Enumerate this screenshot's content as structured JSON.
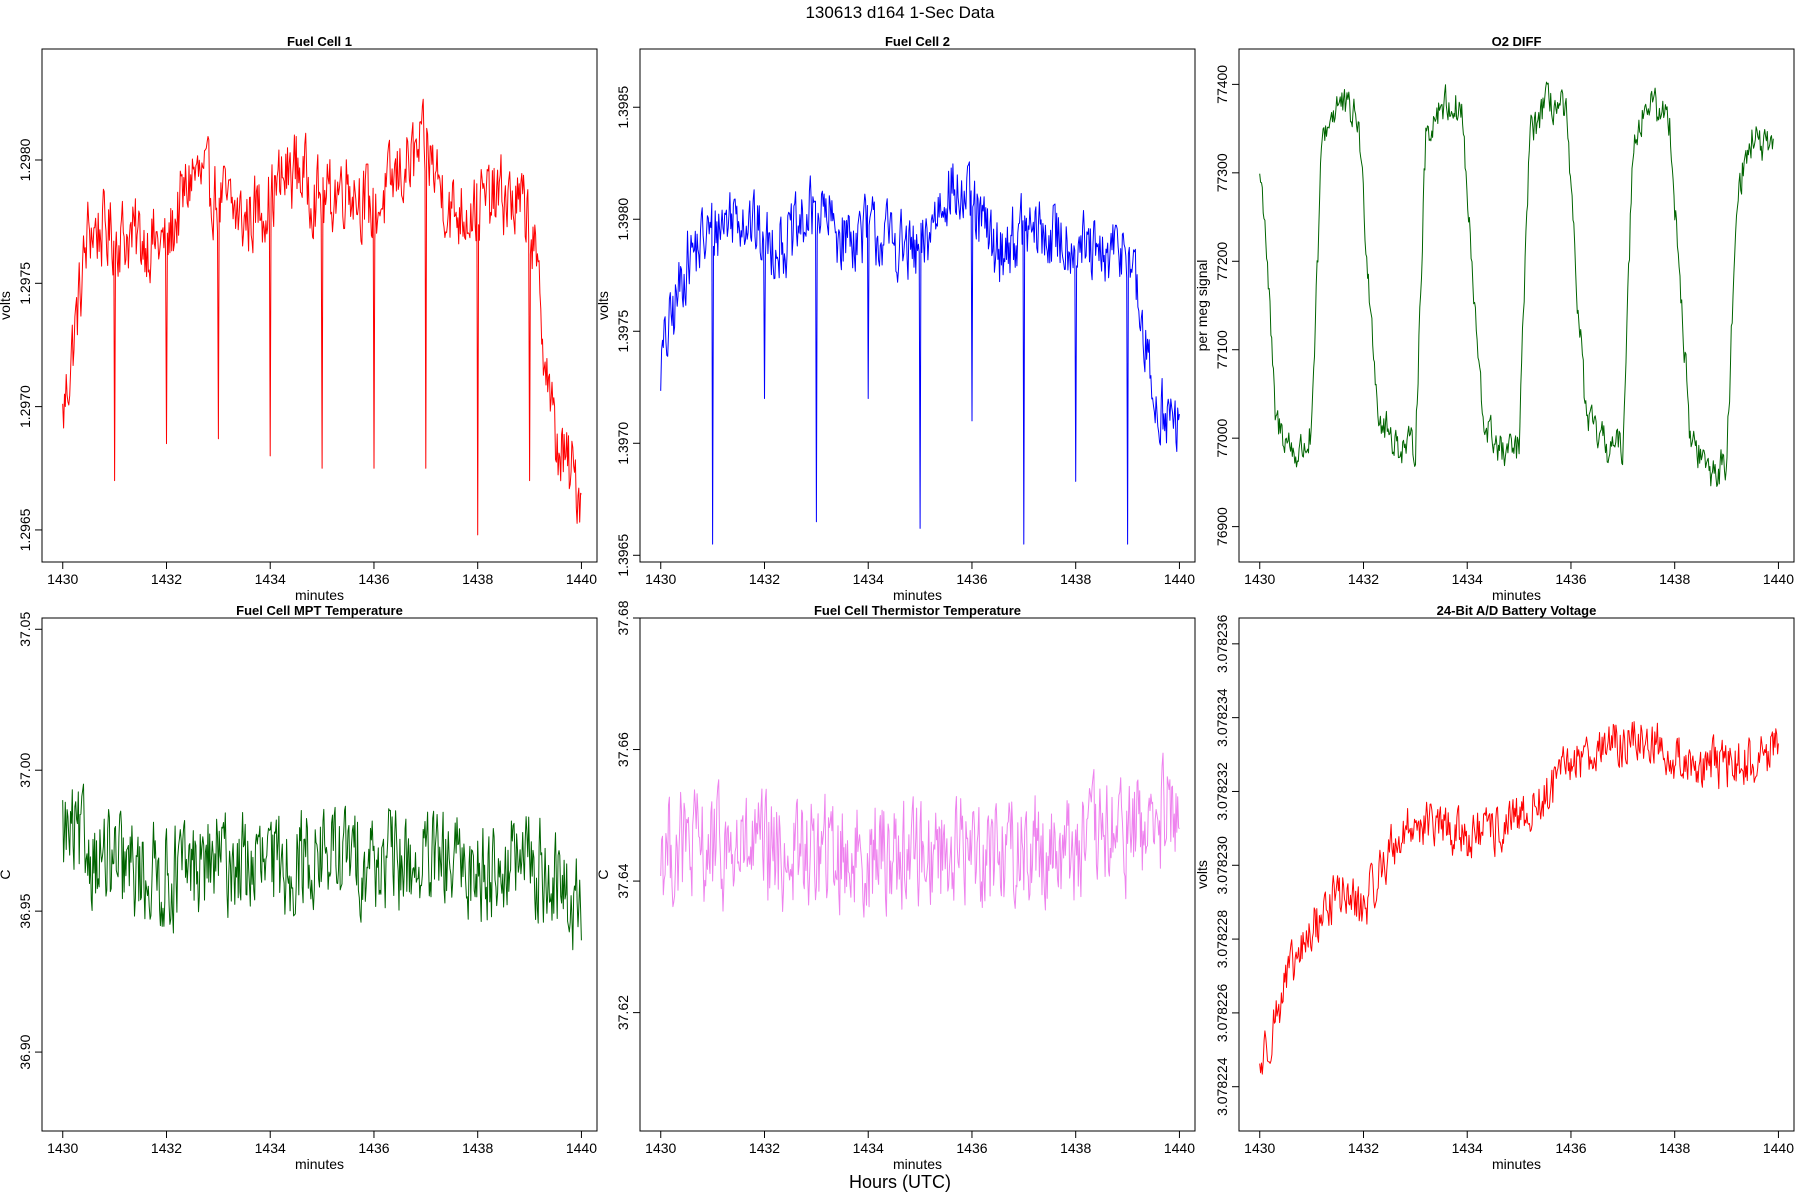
{
  "figure": {
    "title": "130613   d164   1-Sec Data",
    "outer_xlabel": "Hours (UTC)"
  },
  "chart_data": [
    {
      "type": "line",
      "title": "Fuel Cell 1",
      "xlabel": "minutes",
      "ylabel": "volts",
      "color": "#ff0000",
      "xlim": [
        1429.6,
        1440.3
      ],
      "ylim": [
        1.29637,
        1.29845
      ],
      "xticks": [
        1430,
        1432,
        1434,
        1436,
        1438,
        1440
      ],
      "yticks": [
        1.2965,
        1.297,
        1.2975,
        1.298
      ],
      "ytick_labels": [
        "1.2965",
        "1.2970",
        "1.2975",
        "1.2980"
      ],
      "x": [
        1430.0,
        1430.5,
        1431.0,
        1431.5,
        1432.0,
        1432.5,
        1433.0,
        1433.5,
        1434.0,
        1434.5,
        1435.0,
        1435.5,
        1436.0,
        1436.5,
        1437.0,
        1437.5,
        1438.0,
        1438.5,
        1439.0,
        1439.5,
        1440.0
      ],
      "y": [
        1.29695,
        1.29772,
        1.2977,
        1.29768,
        1.29765,
        1.29795,
        1.29785,
        1.29775,
        1.29785,
        1.29798,
        1.29782,
        1.29792,
        1.29778,
        1.29795,
        1.29805,
        1.29778,
        1.29782,
        1.29785,
        1.29778,
        1.29685,
        1.29665
      ]
    },
    {
      "type": "line",
      "title": "Fuel Cell 2",
      "xlabel": "minutes",
      "ylabel": "volts",
      "color": "#0000ff",
      "xlim": [
        1429.6,
        1440.3
      ],
      "ylim": [
        1.39647,
        1.39876
      ],
      "xticks": [
        1430,
        1432,
        1434,
        1436,
        1438,
        1440
      ],
      "yticks": [
        1.3965,
        1.397,
        1.3975,
        1.398,
        1.3985
      ],
      "ytick_labels": [
        "1.3965",
        "1.3970",
        "1.3975",
        "1.3980",
        "1.3985"
      ],
      "x": [
        1430.0,
        1430.5,
        1431.0,
        1431.5,
        1432.0,
        1432.5,
        1433.0,
        1433.5,
        1434.0,
        1434.5,
        1435.0,
        1435.5,
        1436.0,
        1436.5,
        1437.0,
        1437.5,
        1438.0,
        1438.5,
        1439.0,
        1439.5,
        1440.0
      ],
      "y": [
        1.39735,
        1.39782,
        1.39795,
        1.39805,
        1.3979,
        1.3979,
        1.39805,
        1.39792,
        1.39795,
        1.3979,
        1.39782,
        1.39815,
        1.39805,
        1.39785,
        1.39795,
        1.39792,
        1.3979,
        1.3978,
        1.3979,
        1.3972,
        1.39705
      ]
    },
    {
      "type": "line",
      "title": "O2 DIFF",
      "xlabel": "minutes",
      "ylabel": "per meg signal",
      "color": "#006400",
      "xlim": [
        1429.6,
        1440.3
      ],
      "ylim": [
        76860,
        77440
      ],
      "xticks": [
        1430,
        1432,
        1434,
        1436,
        1438,
        1440
      ],
      "yticks": [
        76900,
        77000,
        77100,
        77200,
        77300,
        77400
      ],
      "ytick_labels": [
        "76900",
        "77000",
        "77100",
        "77200",
        "77300",
        "77400"
      ],
      "x": [
        1430.0,
        1430.1,
        1430.3,
        1430.7,
        1431.0,
        1431.2,
        1431.5,
        1431.9,
        1432.1,
        1432.3,
        1432.7,
        1433.0,
        1433.2,
        1433.5,
        1433.9,
        1434.1,
        1434.3,
        1434.7,
        1435.0,
        1435.2,
        1435.5,
        1435.9,
        1436.1,
        1436.3,
        1436.7,
        1437.0,
        1437.2,
        1437.5,
        1437.9,
        1438.1,
        1438.3,
        1438.7,
        1439.0,
        1439.2,
        1439.5,
        1439.9
      ],
      "y": [
        77300,
        77250,
        77020,
        76980,
        77000,
        77340,
        77380,
        77360,
        77180,
        77020,
        76990,
        76990,
        77340,
        77380,
        77370,
        77180,
        77020,
        76980,
        76990,
        77340,
        77380,
        77370,
        77180,
        77020,
        76990,
        76990,
        77340,
        77380,
        77360,
        77180,
        77000,
        76960,
        76970,
        77280,
        77340,
        77320
      ]
    },
    {
      "type": "line",
      "title": "Fuel Cell MPT Temperature",
      "xlabel": "minutes",
      "ylabel": "C",
      "color": "#006400",
      "xlim": [
        1429.6,
        1440.3
      ],
      "ylim": [
        36.872,
        37.054
      ],
      "xticks": [
        1430,
        1432,
        1434,
        1436,
        1438,
        1440
      ],
      "yticks": [
        36.9,
        36.95,
        37.0,
        37.05
      ],
      "ytick_labels": [
        "36.90",
        "36.95",
        "37.00",
        "37.05"
      ],
      "x": [
        1430.0,
        1431.0,
        1432.0,
        1433.0,
        1434.0,
        1435.0,
        1436.0,
        1437.0,
        1438.0,
        1439.0,
        1440.0
      ],
      "y": [
        36.978,
        36.965,
        36.962,
        36.968,
        36.965,
        36.97,
        36.968,
        36.966,
        36.965,
        36.968,
        36.95
      ]
    },
    {
      "type": "line",
      "title": "Fuel Cell Thermistor Temperature",
      "xlabel": "minutes",
      "ylabel": "C",
      "color": "#ee82ee",
      "xlim": [
        1429.6,
        1440.3
      ],
      "ylim": [
        37.602,
        37.68
      ],
      "xticks": [
        1430,
        1432,
        1434,
        1436,
        1438,
        1440
      ],
      "yticks": [
        37.62,
        37.64,
        37.66,
        37.68
      ],
      "ytick_labels": [
        "37.62",
        "37.64",
        "37.66",
        "37.68"
      ],
      "x": [
        1430.0,
        1432.0,
        1434.0,
        1436.0,
        1438.0,
        1440.0
      ],
      "y": [
        37.645,
        37.644,
        37.644,
        37.645,
        37.645,
        37.65
      ]
    },
    {
      "type": "line",
      "title": "24-Bit A/D Battery Voltage",
      "xlabel": "minutes",
      "ylabel": "volts",
      "color": "#ff0000",
      "xlim": [
        1429.6,
        1440.3
      ],
      "ylim": [
        3.0782228,
        3.0782367
      ],
      "xticks": [
        1430,
        1432,
        1434,
        1436,
        1438,
        1440
      ],
      "yticks": [
        3.078224,
        3.078226,
        3.078228,
        3.07823,
        3.078232,
        3.078234,
        3.078236
      ],
      "ytick_labels": [
        "3.078224",
        "3.078226",
        "3.078228",
        "3.078230",
        "3.078232",
        "3.078234",
        "3.078236"
      ],
      "x": [
        1430.0,
        1430.5,
        1431.0,
        1431.5,
        1432.0,
        1432.5,
        1433.0,
        1433.5,
        1434.0,
        1434.5,
        1435.0,
        1435.5,
        1436.0,
        1436.5,
        1437.0,
        1437.5,
        1438.0,
        1438.5,
        1439.0,
        1439.5,
        1440.0
      ],
      "y": [
        3.0782245,
        3.0782268,
        3.0782282,
        3.0782293,
        3.0782288,
        3.0782304,
        3.0782312,
        3.078231,
        3.0782308,
        3.0782309,
        3.0782312,
        3.0782318,
        3.0782328,
        3.0782332,
        3.0782333,
        3.0782334,
        3.0782329,
        3.0782327,
        3.0782327,
        3.0782328,
        3.0782332
      ]
    }
  ]
}
